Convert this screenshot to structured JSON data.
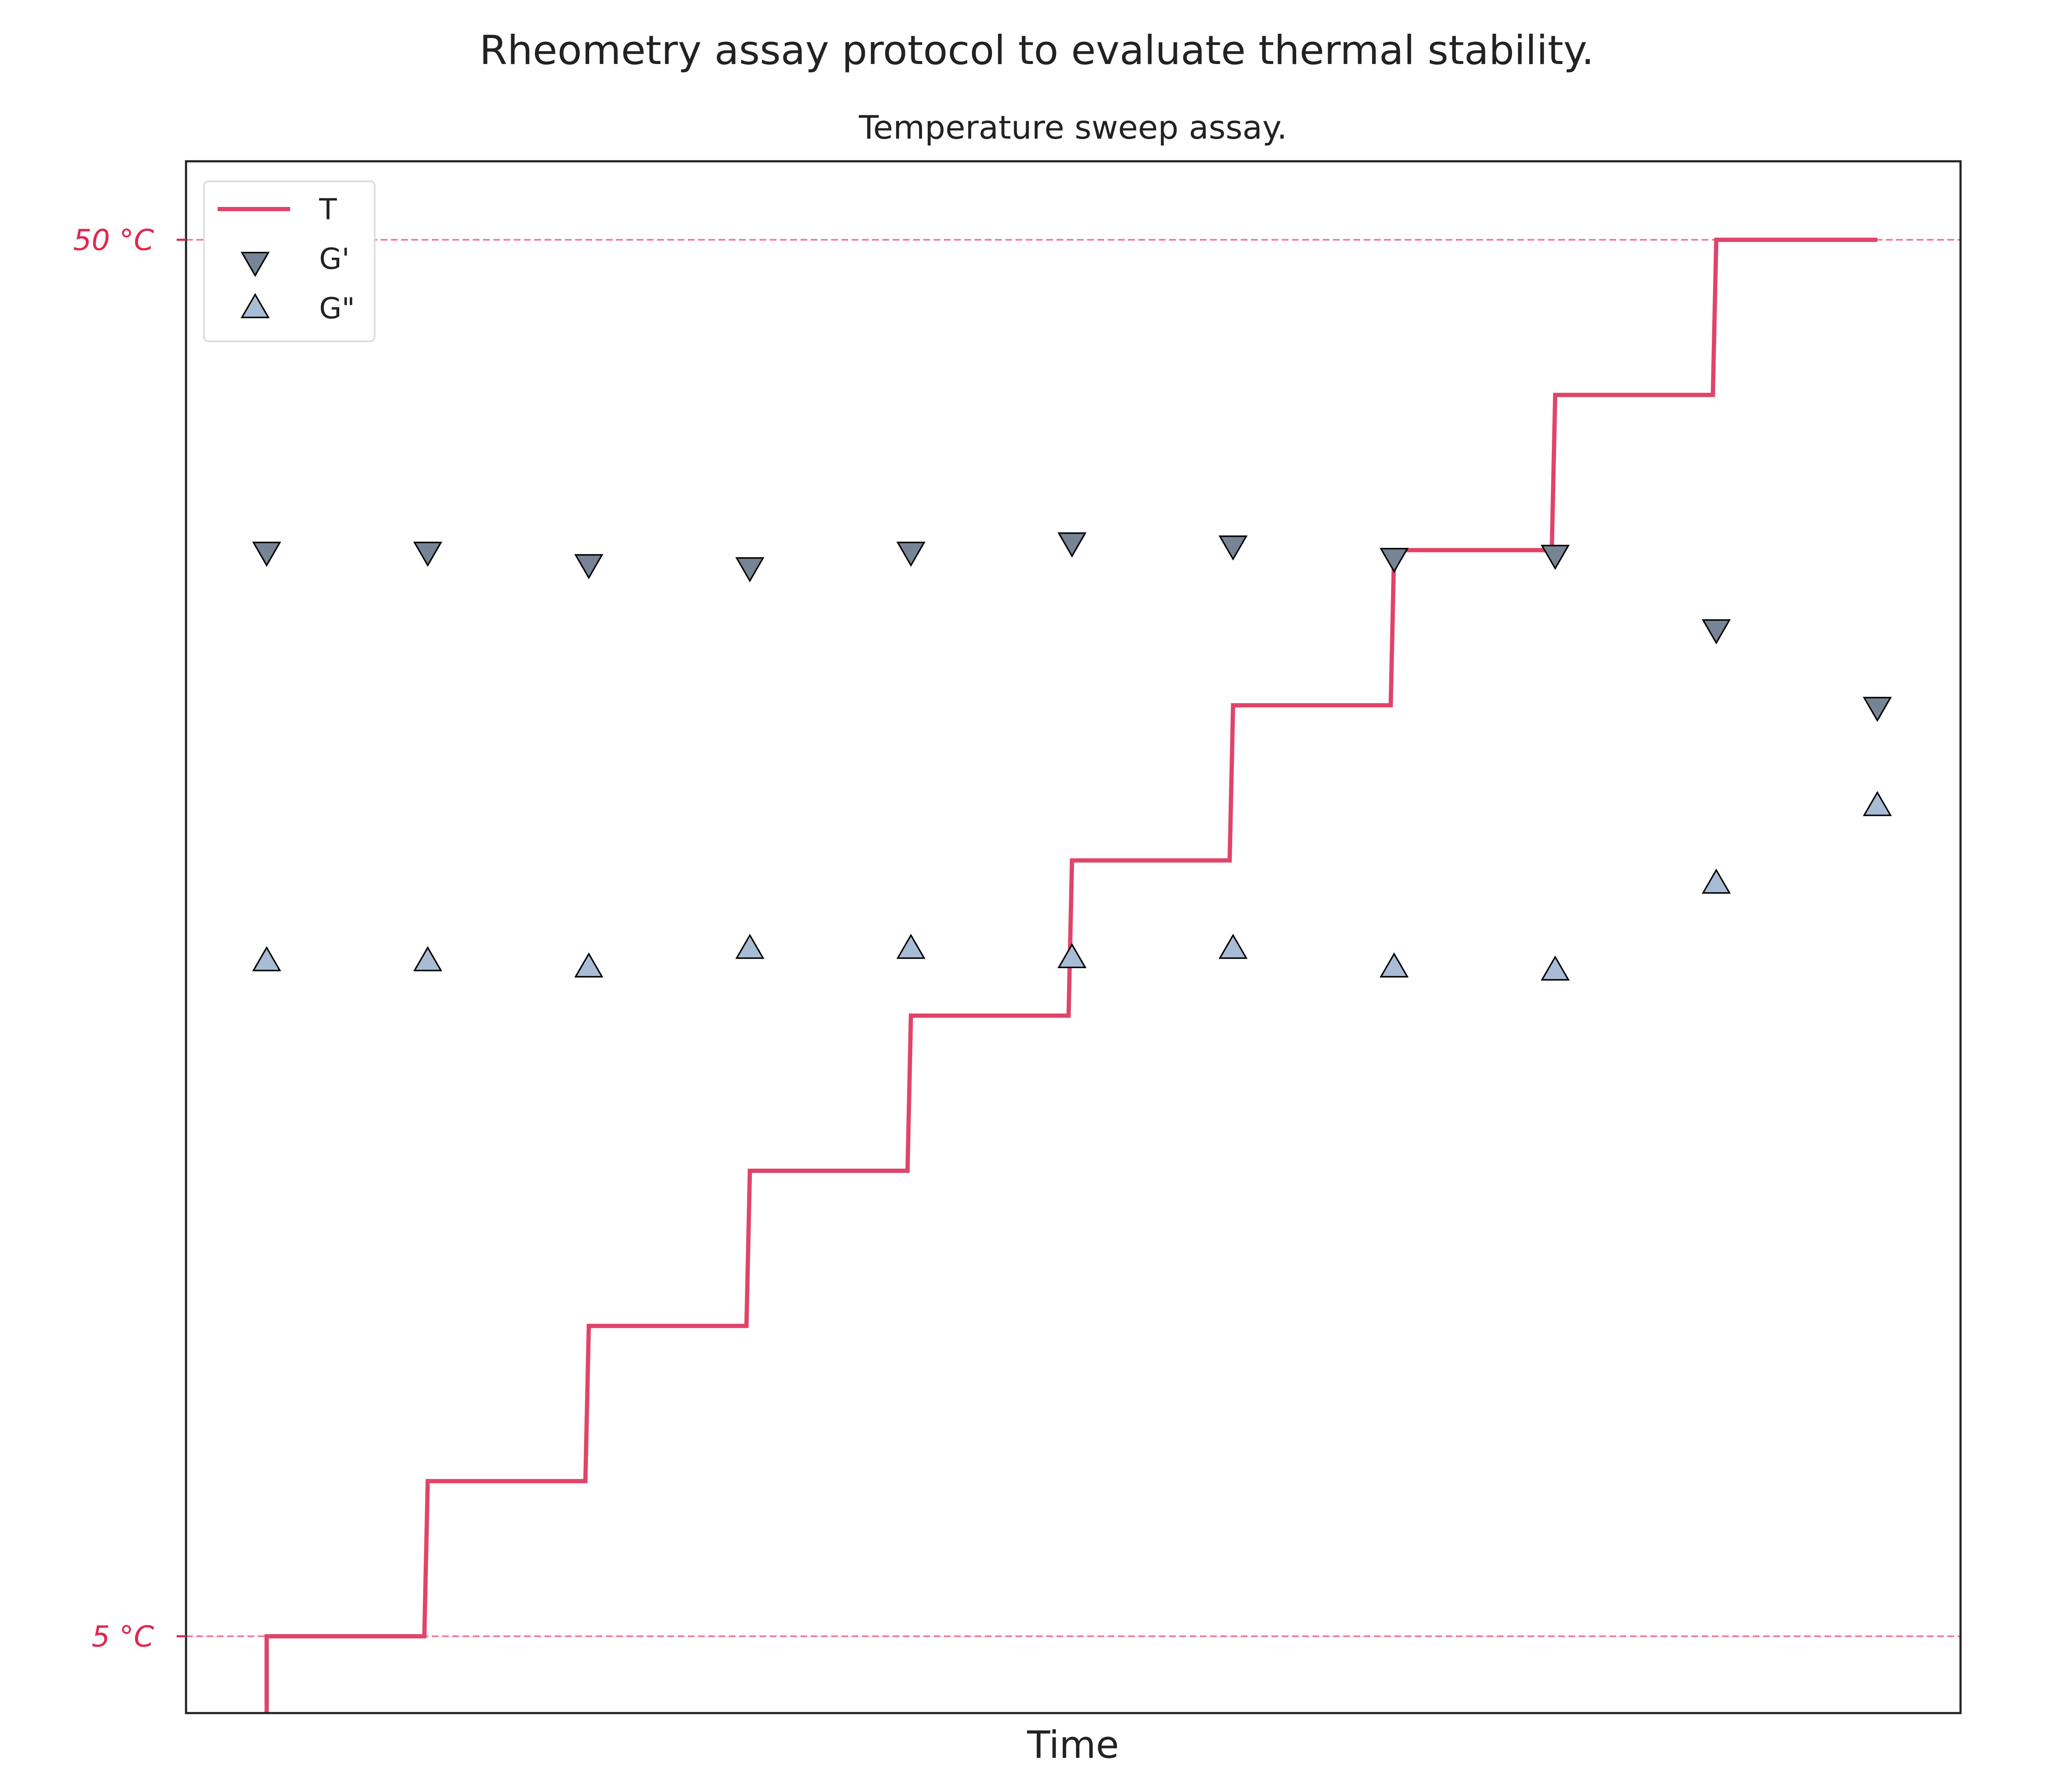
{
  "figure": {
    "title": "Rheometry assay protocol to evaluate thermal stability."
  },
  "chart_data": {
    "type": "line",
    "title": "Temperature sweep assay.",
    "xlabel": "Time",
    "ylabel": "",
    "ylim": [
      0,
      55
    ],
    "grid": false,
    "legend_position": "top-left",
    "y_ticks": [
      {
        "value": 5,
        "label": "5 °C"
      },
      {
        "value": 50,
        "label": "50 °C"
      }
    ],
    "reference_lines": [
      5,
      50
    ],
    "x_steps": 11,
    "series": [
      {
        "name": "T",
        "kind": "step-line",
        "color": "#e0446a",
        "values": [
          5,
          10,
          15,
          20,
          25,
          30,
          35,
          40,
          45,
          50,
          50
        ]
      },
      {
        "name": "G'",
        "kind": "scatter",
        "marker": "triangle-down",
        "color": "#778495",
        "values": [
          40,
          40,
          39.6,
          39.5,
          40,
          40.3,
          40.2,
          39.8,
          39.9,
          37.5,
          35
        ]
      },
      {
        "name": "G\"",
        "kind": "scatter",
        "marker": "triangle-up",
        "color": "#a9bcd6",
        "values": [
          26.7,
          26.7,
          26.5,
          27.1,
          27.1,
          26.8,
          27.1,
          26.5,
          26.4,
          29.2,
          31.7
        ]
      }
    ],
    "colors": {
      "temperature": "#e0446a",
      "tick_label": "#e0284f",
      "reference_line": "#ee7f99",
      "axis": "#222222"
    }
  }
}
